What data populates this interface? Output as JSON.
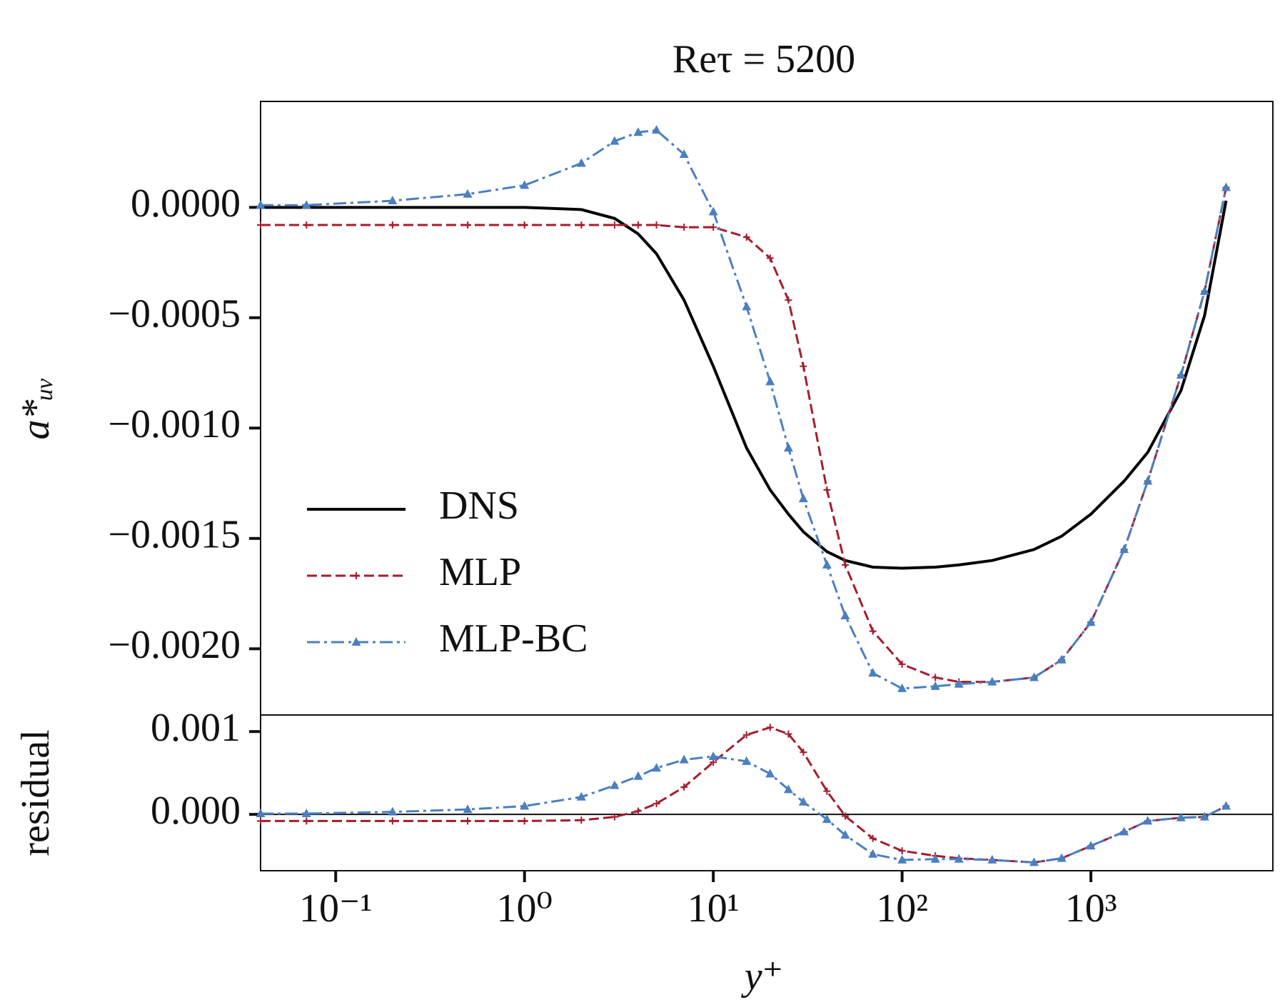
{
  "chart_data": [
    {
      "type": "line",
      "title": "Reτ = 5200",
      "ylabel": "a*ᵤᵥ",
      "log_x": true,
      "xlim": [
        0.04,
        9200
      ],
      "ylim": [
        -0.0023,
        0.00048
      ],
      "yticks": [
        {
          "value": 0,
          "label": "0.0000"
        },
        {
          "value": -0.0005,
          "label": "−0.0005"
        },
        {
          "value": -0.001,
          "label": "−0.0010"
        },
        {
          "value": -0.0015,
          "label": "−0.0015"
        },
        {
          "value": -0.002,
          "label": "−0.0020"
        }
      ],
      "legend": "center left",
      "x": [
        0.04,
        0.07,
        0.2,
        0.5,
        1,
        2,
        3,
        4,
        5,
        7,
        10,
        15,
        20,
        25,
        30,
        40,
        50,
        70,
        100,
        150,
        200,
        300,
        500,
        700,
        1000,
        1500,
        2000,
        3000,
        4000,
        5200
      ],
      "series": [
        {
          "name": "DNS",
          "color": "#000000",
          "dash": "solid",
          "marker": "none",
          "values": [
            0,
            0,
            0,
            0,
            0,
            -1e-05,
            -5e-05,
            -0.00012,
            -0.00021,
            -0.00042,
            -0.00072,
            -0.00109,
            -0.00128,
            -0.00139,
            -0.00147,
            -0.00156,
            -0.0016,
            -0.00163,
            -0.001635,
            -0.00163,
            -0.00162,
            -0.0016,
            -0.00155,
            -0.00149,
            -0.00139,
            -0.00124,
            -0.00111,
            -0.00083,
            -0.00049,
            3e-05
          ]
        },
        {
          "name": "MLP",
          "color": "#a51c2c",
          "dash": "dashed",
          "marker": "plus",
          "values": [
            -8e-05,
            -8e-05,
            -8e-05,
            -8e-05,
            -8e-05,
            -8e-05,
            -8e-05,
            -8e-05,
            -8e-05,
            -9e-05,
            -9e-05,
            -0.000135,
            -0.00023,
            -0.00042,
            -0.00072,
            -0.00128,
            -0.00162,
            -0.00192,
            -0.00207,
            -0.00213,
            -0.00215,
            -0.00215,
            -0.00213,
            -0.00205,
            -0.00188,
            -0.00155,
            -0.00124,
            -0.00076,
            -0.00038,
            9e-05
          ]
        },
        {
          "name": "MLP-BC",
          "color": "#4a7fc1",
          "dash": "dashdot",
          "marker": "triangle",
          "values": [
            1e-05,
            1e-05,
            3e-05,
            6e-05,
            0.0001,
            0.0002,
            0.0003,
            0.00034,
            0.00035,
            0.00024,
            -2e-05,
            -0.00045,
            -0.00079,
            -0.00109,
            -0.00132,
            -0.00162,
            -0.00185,
            -0.00211,
            -0.00218,
            -0.00217,
            -0.00216,
            -0.00215,
            -0.00213,
            -0.00205,
            -0.00188,
            -0.00155,
            -0.00124,
            -0.00076,
            -0.00038,
            9e-05
          ]
        }
      ]
    },
    {
      "type": "line",
      "ylabel": "residual",
      "xlabel": "y⁺",
      "log_x": true,
      "xlim": [
        0.04,
        9200
      ],
      "ylim": [
        -0.00068,
        0.0012
      ],
      "yticks": [
        {
          "value": 0.001,
          "label": "0.001"
        },
        {
          "value": 0,
          "label": "0.000"
        }
      ],
      "xticks": [
        {
          "value": 0.1,
          "label": "10⁻¹"
        },
        {
          "value": 1,
          "label": "10⁰"
        },
        {
          "value": 10,
          "label": "10¹"
        },
        {
          "value": 100,
          "label": "10²"
        },
        {
          "value": 1000,
          "label": "10³"
        }
      ],
      "hline": 0,
      "x": [
        0.04,
        0.07,
        0.2,
        0.5,
        1,
        2,
        3,
        4,
        5,
        7,
        10,
        15,
        20,
        25,
        30,
        40,
        50,
        70,
        100,
        150,
        200,
        300,
        500,
        700,
        1000,
        1500,
        2000,
        3000,
        4000,
        5200
      ],
      "series": [
        {
          "color": "#a51c2c",
          "dash": "dashed",
          "marker": "plus",
          "values": [
            -8e-05,
            -8e-05,
            -8e-05,
            -8e-05,
            -8e-05,
            -7e-05,
            -3e-05,
            4e-05,
            0.00013,
            0.00033,
            0.00063,
            0.00096,
            0.00105,
            0.00097,
            0.00075,
            0.00028,
            -2e-05,
            -0.00029,
            -0.00044,
            -0.0005,
            -0.00053,
            -0.00055,
            -0.00058,
            -0.00053,
            -0.00038,
            -0.00021,
            -8e-05,
            -4e-05,
            -3e-05,
            0.0001
          ]
        },
        {
          "color": "#4a7fc1",
          "dash": "dashdot",
          "marker": "triangle",
          "values": [
            1e-05,
            1e-05,
            3e-05,
            6e-05,
            0.0001,
            0.00021,
            0.00035,
            0.00046,
            0.00056,
            0.00066,
            0.0007,
            0.00064,
            0.00049,
            0.0003,
            0.00015,
            -6e-05,
            -0.00025,
            -0.00048,
            -0.00055,
            -0.00054,
            -0.00054,
            -0.00055,
            -0.00058,
            -0.00053,
            -0.00038,
            -0.00021,
            -8e-05,
            -4e-05,
            -3e-05,
            0.0001
          ]
        }
      ]
    }
  ]
}
